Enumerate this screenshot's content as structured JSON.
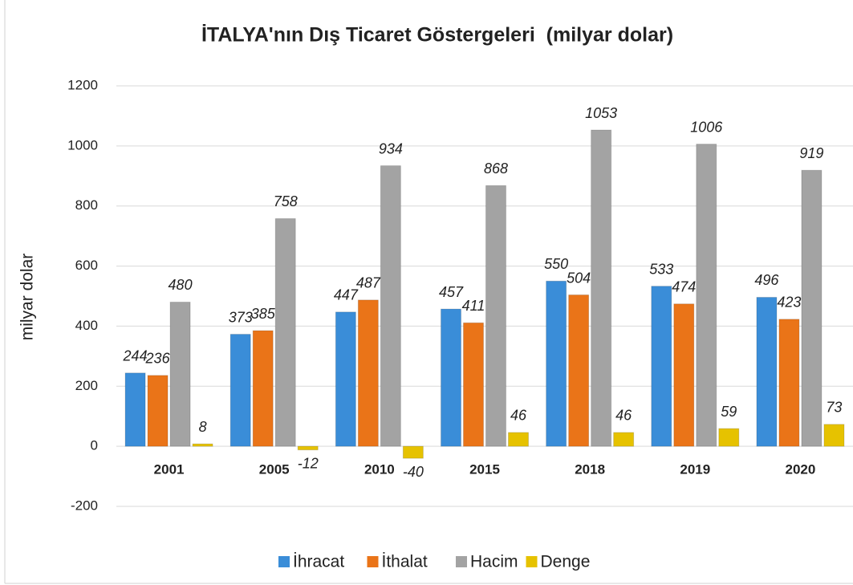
{
  "chart_data": {
    "type": "bar",
    "title": "İTALYA'nın Dış Ticaret Göstergeleri  (milyar dolar)",
    "y_label": "milyar dolar",
    "categories": [
      "2001",
      "2005",
      "2010",
      "2015",
      "2018",
      "2019",
      "2020"
    ],
    "series": [
      {
        "name": "İhracat",
        "color": "#3a8dd8",
        "values": [
          244,
          373,
          447,
          457,
          550,
          533,
          496
        ]
      },
      {
        "name": "İthalat",
        "color": "#ea7418",
        "values": [
          236,
          385,
          487,
          411,
          504,
          474,
          423
        ]
      },
      {
        "name": "Hacim",
        "color": "#a3a3a3",
        "values": [
          480,
          758,
          934,
          868,
          1053,
          1006,
          919
        ]
      },
      {
        "name": "Denge",
        "color": "#e6c200",
        "values": [
          8,
          -12,
          -40,
          46,
          46,
          59,
          73
        ]
      }
    ],
    "ylim": [
      -200,
      1200
    ],
    "yticks": [
      -200,
      0,
      200,
      400,
      600,
      800,
      1000,
      1200
    ],
    "grid": true,
    "legend": "bottom"
  }
}
